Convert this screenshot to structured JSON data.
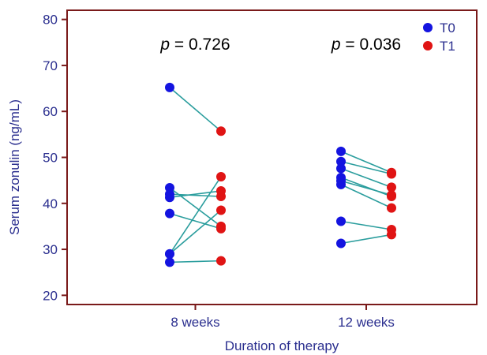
{
  "chart_data": {
    "type": "scatter",
    "subtype": "paired-dot-plot",
    "xlabel": "Duration of therapy",
    "ylabel": "Serum zonulin (ng/mL)",
    "ylim": [
      18,
      82
    ],
    "yticks": [
      20,
      30,
      40,
      50,
      60,
      70,
      80
    ],
    "groups": [
      {
        "label": "8 weeks",
        "p_prefix": "p",
        "p_text": "= 0.726",
        "pairs": [
          {
            "t0": 65.2,
            "t1": 55.7
          },
          {
            "t0": 43.4,
            "t1": 35.0
          },
          {
            "t0": 42.0,
            "t1": 41.5
          },
          {
            "t0": 41.3,
            "t1": 42.7
          },
          {
            "t0": 37.8,
            "t1": 34.5
          },
          {
            "t0": 29.0,
            "t1": 45.8
          },
          {
            "t0": 27.2,
            "t1": 27.5
          },
          {
            "t0": 29.0,
            "t1": 38.5
          }
        ]
      },
      {
        "label": "12 weeks",
        "p_prefix": "p",
        "p_text": "= 0.036",
        "pairs": [
          {
            "t0": 51.3,
            "t1": 46.7
          },
          {
            "t0": 49.1,
            "t1": 46.4
          },
          {
            "t0": 47.6,
            "t1": 43.5
          },
          {
            "t0": 45.6,
            "t1": 41.5
          },
          {
            "t0": 44.9,
            "t1": 41.8
          },
          {
            "t0": 44.1,
            "t1": 39.0
          },
          {
            "t0": 36.1,
            "t1": 34.3
          },
          {
            "t0": 31.3,
            "t1": 33.2
          }
        ]
      }
    ],
    "series": [
      {
        "name": "T0",
        "color": "#1414e0"
      },
      {
        "name": "T1",
        "color": "#e01414"
      }
    ],
    "line_color": "#2a9d9d",
    "axis_color": "#7a1a1a",
    "legend_position": "top-right",
    "grid": false
  }
}
